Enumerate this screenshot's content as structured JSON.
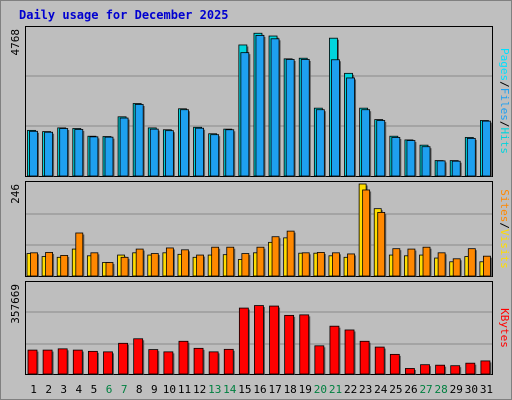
{
  "title": "Daily usage for December 2025",
  "colors": {
    "background": "#bfbfbf",
    "plot_bg": "#bebebe",
    "grid": "#8a8a8a",
    "hits": "#00d4dc",
    "files": "#1ea0f0",
    "pages": "#00e0ff",
    "visits": "#ffdd00",
    "sites": "#ff8800",
    "kbytes": "#ff0000",
    "title": "#0000d0",
    "weekend": "#008040"
  },
  "legend": {
    "top": {
      "pages": "Pages",
      "files": "Files",
      "hits": "Hits"
    },
    "middle": {
      "sites": "Sites",
      "visits": "Visits"
    },
    "bottom": {
      "kbytes": "KBytes"
    },
    "sep": "/"
  },
  "chart_data": [
    {
      "type": "bar",
      "name": "hits-files-pages",
      "max_label": "4768",
      "ylim": [
        0,
        4768
      ],
      "categories": [
        "1",
        "2",
        "3",
        "4",
        "5",
        "6",
        "7",
        "8",
        "9",
        "10",
        "11",
        "12",
        "13",
        "14",
        "15",
        "16",
        "17",
        "18",
        "19",
        "20",
        "21",
        "22",
        "23",
        "24",
        "25",
        "26",
        "27",
        "28",
        "29",
        "30",
        "31"
      ],
      "series": [
        {
          "name": "Hits",
          "values": [
            1480,
            1440,
            1560,
            1540,
            1290,
            1280,
            1920,
            2350,
            1560,
            1500,
            2180,
            1580,
            1370,
            1520,
            4250,
            4630,
            4540,
            3800,
            3820,
            2200,
            4470,
            3330,
            2200,
            1830,
            1290,
            1170,
            1000,
            500,
            500,
            1250,
            1800
          ]
        },
        {
          "name": "Files",
          "values": [
            1450,
            1420,
            1540,
            1510,
            1270,
            1260,
            1880,
            2320,
            1520,
            1470,
            2150,
            1550,
            1340,
            1500,
            4000,
            4560,
            4450,
            3780,
            3780,
            2150,
            3770,
            3180,
            2150,
            1800,
            1250,
            1150,
            950,
            490,
            480,
            1220,
            1780
          ]
        }
      ]
    },
    {
      "type": "bar",
      "name": "visits-sites",
      "max_label": "246",
      "ylim": [
        0,
        246
      ],
      "categories": [
        "1",
        "2",
        "3",
        "4",
        "5",
        "6",
        "7",
        "8",
        "9",
        "10",
        "11",
        "12",
        "13",
        "14",
        "15",
        "16",
        "17",
        "18",
        "19",
        "20",
        "21",
        "22",
        "23",
        "24",
        "25",
        "26",
        "27",
        "28",
        "29",
        "30",
        "31"
      ],
      "series": [
        {
          "name": "Visits",
          "values": [
            60,
            52,
            50,
            72,
            54,
            36,
            56,
            62,
            56,
            62,
            58,
            50,
            56,
            57,
            44,
            62,
            90,
            102,
            61,
            61,
            54,
            50,
            246,
            180,
            56,
            54,
            56,
            48,
            38,
            52,
            38
          ]
        },
        {
          "name": "Sites",
          "values": [
            62,
            63,
            55,
            115,
            62,
            36,
            50,
            72,
            60,
            75,
            70,
            56,
            77,
            77,
            60,
            77,
            105,
            120,
            62,
            63,
            62,
            59,
            230,
            170,
            73,
            72,
            77,
            62,
            46,
            73,
            53
          ]
        }
      ]
    },
    {
      "type": "bar",
      "name": "kbytes",
      "max_label": "357669",
      "ylim": [
        0,
        357669
      ],
      "categories": [
        "1",
        "2",
        "3",
        "4",
        "5",
        "6",
        "7",
        "8",
        "9",
        "10",
        "11",
        "12",
        "13",
        "14",
        "15",
        "16",
        "17",
        "18",
        "19",
        "20",
        "21",
        "22",
        "23",
        "24",
        "25",
        "26",
        "27",
        "28",
        "29",
        "30",
        "31"
      ],
      "series": [
        {
          "name": "KBytes",
          "values": [
            95000,
            95000,
            100000,
            95000,
            90000,
            88000,
            122000,
            140000,
            97000,
            88000,
            130000,
            102000,
            88000,
            98000,
            262000,
            272000,
            270000,
            233000,
            235000,
            112000,
            190000,
            175000,
            130000,
            107000,
            78000,
            22000,
            37000,
            35000,
            33000,
            43000,
            52000
          ]
        }
      ]
    }
  ],
  "x_labels": [
    "1",
    "2",
    "3",
    "4",
    "5",
    "6",
    "7",
    "8",
    "9",
    "10",
    "11",
    "12",
    "13",
    "14",
    "15",
    "16",
    "17",
    "18",
    "19",
    "20",
    "21",
    "22",
    "23",
    "24",
    "25",
    "26",
    "27",
    "28",
    "29",
    "30",
    "31"
  ],
  "weekend_days": [
    "6",
    "7",
    "13",
    "14",
    "20",
    "21",
    "27",
    "28"
  ]
}
